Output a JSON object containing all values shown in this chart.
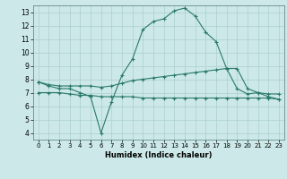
{
  "xlabel": "Humidex (Indice chaleur)",
  "xlim": [
    -0.5,
    23.5
  ],
  "ylim": [
    3.5,
    13.5
  ],
  "yticks": [
    4,
    5,
    6,
    7,
    8,
    9,
    10,
    11,
    12,
    13
  ],
  "xticks": [
    0,
    1,
    2,
    3,
    4,
    5,
    6,
    7,
    8,
    9,
    10,
    11,
    12,
    13,
    14,
    15,
    16,
    17,
    18,
    19,
    20,
    21,
    22,
    23
  ],
  "line_color": "#2a7a6a",
  "bg_color": "#cce8e8",
  "grid_color": "#aad0cc",
  "line1_x": [
    0,
    1,
    2,
    3,
    4,
    5,
    6,
    7,
    8,
    9,
    10,
    11,
    12,
    13,
    14,
    15,
    16,
    17,
    18,
    19,
    20,
    21,
    22,
    23
  ],
  "line1_y": [
    7.8,
    7.5,
    7.3,
    7.3,
    7.0,
    6.7,
    4.0,
    6.3,
    8.3,
    9.5,
    11.7,
    12.3,
    12.5,
    13.1,
    13.3,
    12.7,
    11.5,
    10.8,
    8.8,
    7.3,
    6.9,
    7.0,
    6.7,
    6.5
  ],
  "line2_x": [
    0,
    1,
    2,
    3,
    4,
    5,
    6,
    7,
    8,
    9,
    10,
    11,
    12,
    13,
    14,
    15,
    16,
    17,
    18,
    19,
    20,
    21,
    22,
    23
  ],
  "line2_y": [
    7.8,
    7.6,
    7.5,
    7.5,
    7.5,
    7.5,
    7.4,
    7.5,
    7.7,
    7.9,
    8.0,
    8.1,
    8.2,
    8.3,
    8.4,
    8.5,
    8.6,
    8.7,
    8.8,
    8.8,
    7.3,
    7.0,
    6.9,
    6.9
  ],
  "line3_x": [
    0,
    1,
    2,
    3,
    4,
    5,
    6,
    7,
    8,
    9,
    10,
    11,
    12,
    13,
    14,
    15,
    16,
    17,
    18,
    19,
    20,
    21,
    22,
    23
  ],
  "line3_y": [
    7.0,
    7.0,
    7.0,
    6.9,
    6.8,
    6.8,
    6.7,
    6.7,
    6.7,
    6.7,
    6.6,
    6.6,
    6.6,
    6.6,
    6.6,
    6.6,
    6.6,
    6.6,
    6.6,
    6.6,
    6.6,
    6.6,
    6.6,
    6.5
  ]
}
